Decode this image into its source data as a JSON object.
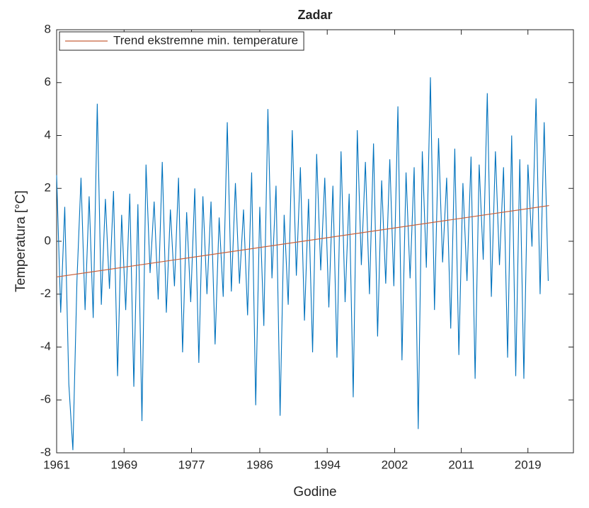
{
  "chart_data": {
    "type": "line",
    "title": "Zadar",
    "xlabel": "Godine",
    "ylabel": "Temperatura [°C]",
    "xlim": [
      1961,
      2024.6
    ],
    "ylim": [
      -8,
      8
    ],
    "xticks": [
      1961,
      {
        "value": 1969.3,
        "label": "1969"
      },
      {
        "value": 1977.6,
        "label": "1977"
      },
      {
        "value": 1986.0,
        "label": "1986"
      },
      {
        "value": 1994.3,
        "label": "1994"
      },
      {
        "value": 2002.6,
        "label": "2002"
      },
      {
        "value": 2010.8,
        "label": "2011"
      },
      {
        "value": 2019.0,
        "label": "2019"
      }
    ],
    "yticks": [
      -8,
      -6,
      -4,
      -2,
      0,
      2,
      4,
      6,
      8
    ],
    "grid": false,
    "legend": "upper left",
    "series": [
      {
        "color": "#0072bd",
        "x": [
          1961,
          1961.5,
          1962,
          1962.5,
          1963,
          1963.5,
          1964,
          1964.5,
          1965,
          1965.5,
          1966,
          1966.5,
          1967,
          1967.5,
          1968,
          1968.5,
          1969,
          1969.5,
          1970,
          1970.5,
          1971,
          1971.5,
          1972,
          1972.5,
          1973,
          1973.5,
          1974,
          1974.5,
          1975,
          1975.5,
          1976,
          1976.5,
          1977,
          1977.5,
          1978,
          1978.5,
          1979,
          1979.5,
          1980,
          1980.5,
          1981,
          1981.5,
          1982,
          1982.5,
          1983,
          1983.5,
          1984,
          1984.5,
          1985,
          1985.5,
          1986,
          1986.5,
          1987,
          1987.5,
          1988,
          1988.5,
          1989,
          1989.5,
          1990,
          1990.5,
          1991,
          1991.5,
          1992,
          1992.5,
          1993,
          1993.5,
          1994,
          1994.5,
          1995,
          1995.5,
          1996,
          1996.5,
          1997,
          1997.5,
          1998,
          1998.5,
          1999,
          1999.5,
          2000,
          2000.5,
          2001,
          2001.5,
          2002,
          2002.5,
          2003,
          2003.5,
          2004,
          2004.5,
          2005,
          2005.5,
          2006,
          2006.5,
          2007,
          2007.5,
          2008,
          2008.5,
          2009,
          2009.5,
          2010,
          2010.5,
          2011,
          2011.5,
          2012,
          2012.5,
          2013,
          2013.5,
          2014,
          2014.5,
          2015,
          2015.5,
          2016,
          2016.5,
          2017,
          2017.5,
          2018,
          2018.5,
          2019,
          2019.5,
          2020,
          2020.5,
          2021,
          2021.5
        ],
        "values": [
          2.5,
          -2.7,
          1.3,
          -5.4,
          -7.9,
          -1.5,
          2.4,
          -2.6,
          1.7,
          -2.9,
          5.2,
          -2.4,
          1.6,
          -1.8,
          1.9,
          -5.1,
          1.0,
          -2.6,
          1.8,
          -5.5,
          1.4,
          -6.8,
          2.9,
          -1.2,
          1.5,
          -2.2,
          3.0,
          -2.7,
          1.2,
          -1.7,
          2.4,
          -4.2,
          1.1,
          -2.3,
          2.0,
          -4.6,
          1.7,
          -2.0,
          1.5,
          -3.9,
          0.9,
          -2.1,
          4.5,
          -1.9,
          2.2,
          -1.6,
          1.2,
          -2.8,
          2.6,
          -6.2,
          1.3,
          -3.2,
          5.0,
          -1.4,
          2.1,
          -6.6,
          1.0,
          -2.4,
          4.2,
          -1.3,
          2.8,
          -3.0,
          1.6,
          -4.2,
          3.3,
          -1.1,
          2.4,
          -2.5,
          2.1,
          -4.4,
          3.4,
          -2.3,
          1.8,
          -5.9,
          4.2,
          -0.9,
          3.0,
          -2.0,
          3.7,
          -3.6,
          2.3,
          -1.6,
          3.1,
          -1.7,
          5.1,
          -4.5,
          2.6,
          -1.4,
          2.8,
          -7.1,
          3.4,
          -1.0,
          6.2,
          -2.6,
          3.9,
          -0.8,
          2.4,
          -3.3,
          3.5,
          -4.3,
          2.2,
          -1.5,
          3.2,
          -5.2,
          2.9,
          -0.7,
          5.6,
          -2.1,
          3.4,
          -0.9,
          2.8,
          -4.4,
          4.0,
          -5.1,
          3.1,
          -5.2,
          2.9,
          -0.2,
          5.4,
          -2.0,
          4.5,
          -1.5
        ]
      },
      {
        "name": "Trend ekstremne min. temperature",
        "color": "#c8603a",
        "x": [
          1961,
          2021.6
        ],
        "values": [
          -1.35,
          1.35
        ]
      }
    ]
  }
}
